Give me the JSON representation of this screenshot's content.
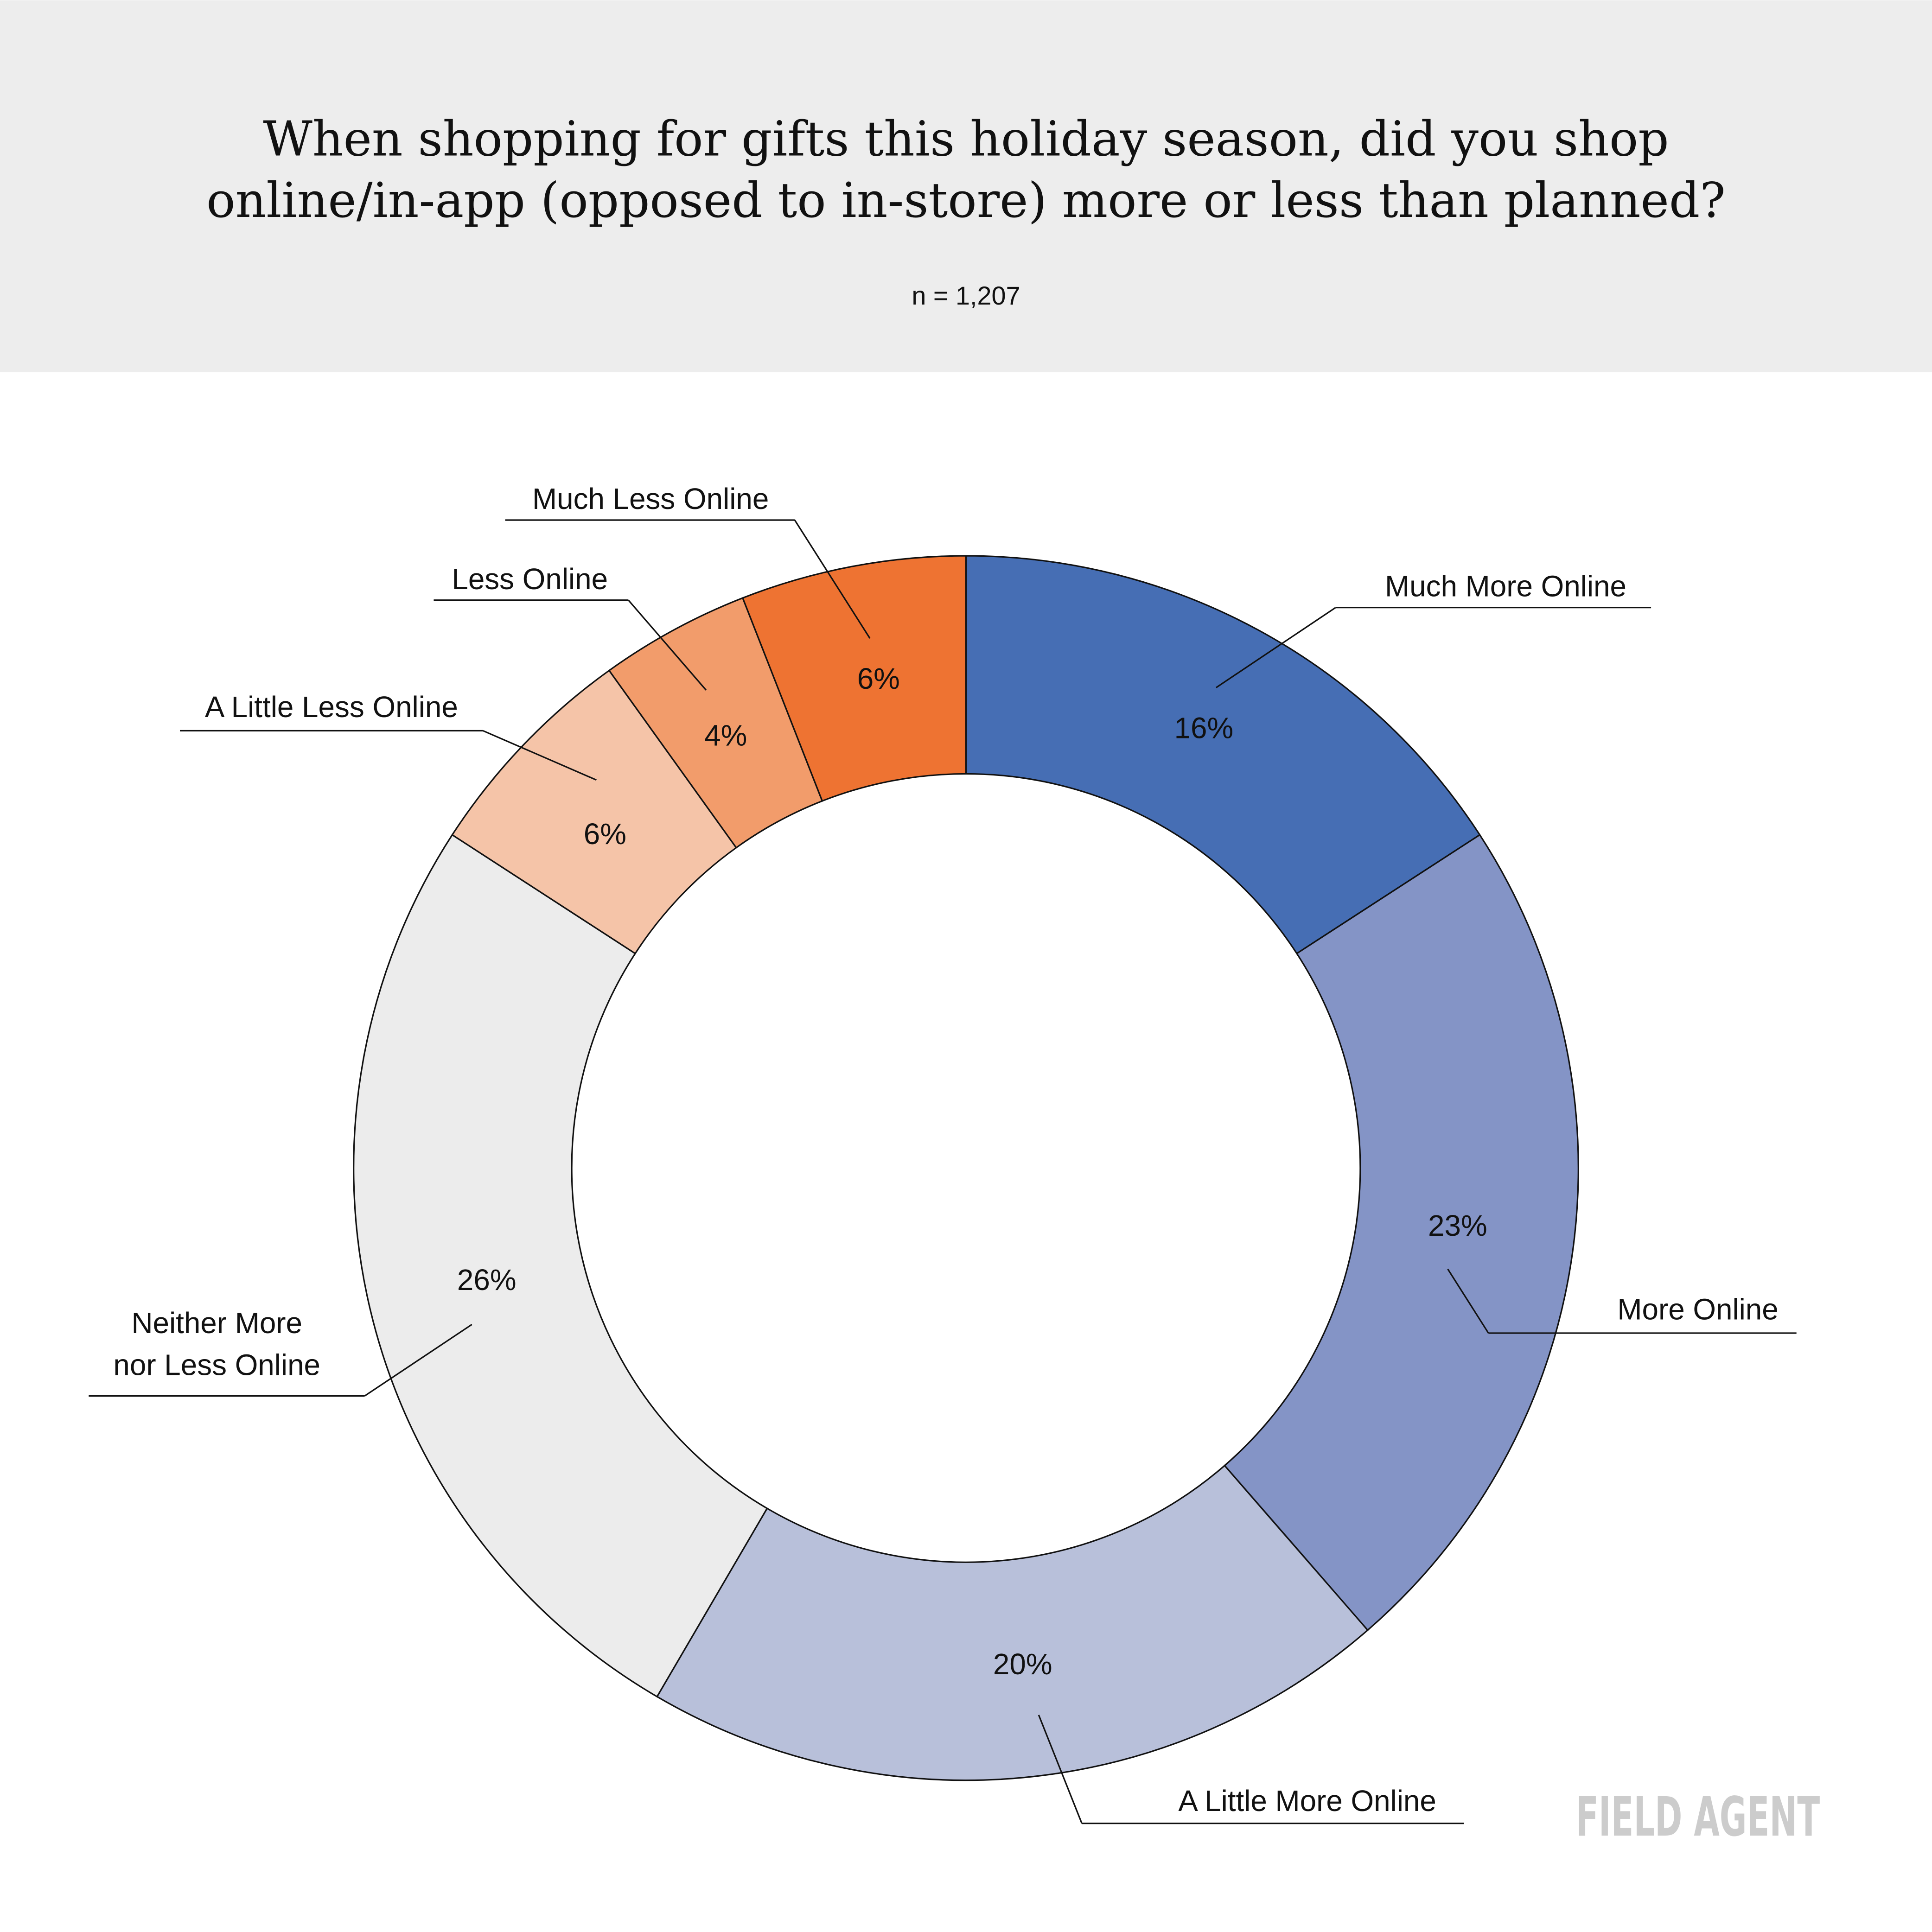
{
  "header": {
    "title_line1": "When shopping for gifts this holiday season, did you shop",
    "title_line2": "online/in-app (opposed to in-store) more or less than planned?",
    "sample": "n = 1,207"
  },
  "logo": "FIELD AGENT",
  "chart_data": {
    "type": "pie",
    "donut": true,
    "title": "When shopping for gifts this holiday season, did you shop online/in-app (opposed to in-store) more or less than planned?",
    "categories": [
      "Much More Online",
      "More Online",
      "A Little More Online",
      "Neither More nor Less Online",
      "A Little Less Online",
      "Less Online",
      "Much Less Online"
    ],
    "label_lines": [
      [
        "Much More Online"
      ],
      [
        "More Online"
      ],
      [
        "A Little More Online"
      ],
      [
        "Neither More",
        "nor Less Online"
      ],
      [
        "A Little Less Online"
      ],
      [
        "Less Online"
      ],
      [
        "Much Less Online"
      ]
    ],
    "values": [
      16,
      23,
      20,
      26,
      6,
      4,
      6
    ],
    "value_labels": [
      "16%",
      "23%",
      "20%",
      "26%",
      "6%",
      "4%",
      "6%"
    ],
    "colors": [
      "#466EB4",
      "#8494C6",
      "#B8C0DA",
      "#ECECEC",
      "#F5C4A8",
      "#F29C6B",
      "#EE7332"
    ],
    "start": "top, clockwise"
  }
}
